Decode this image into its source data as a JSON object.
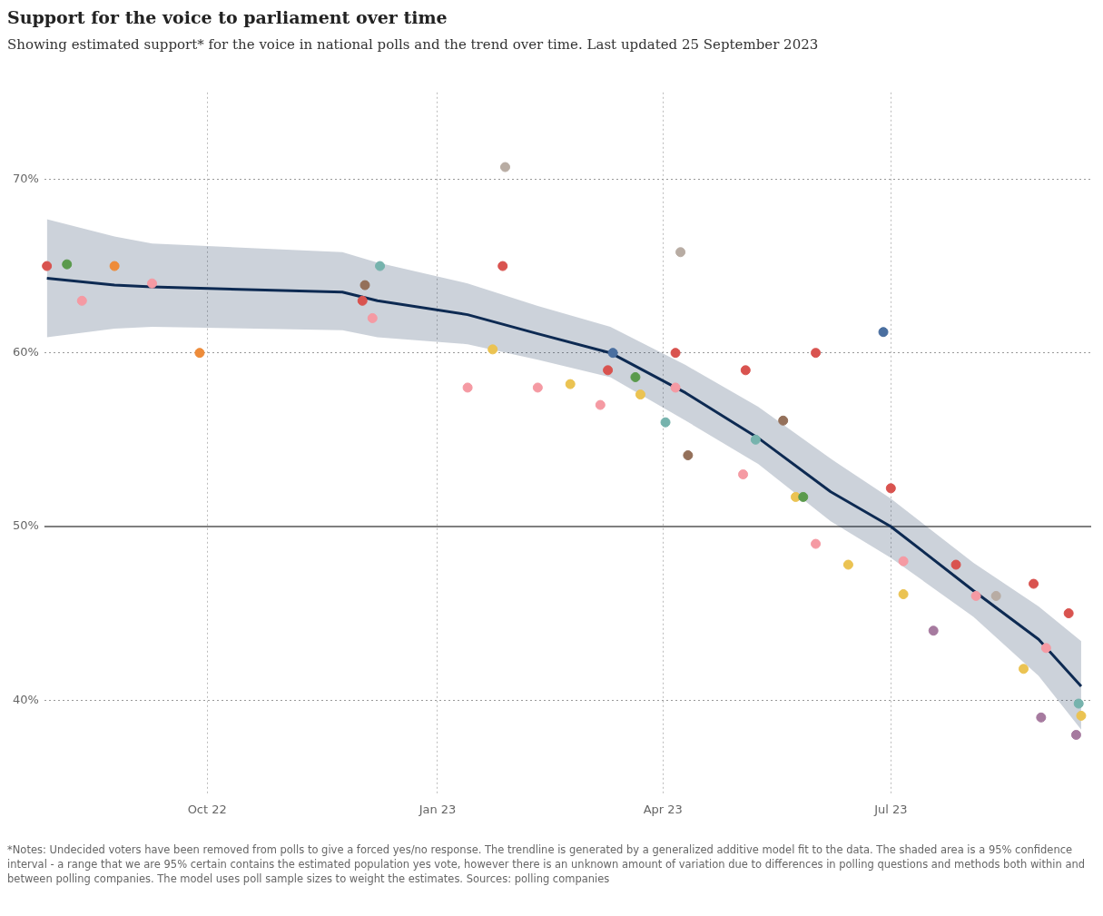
{
  "chart_data": {
    "type": "scatter",
    "title": "Support for the voice to parliament over time",
    "subtitle": "Showing estimated support* for the voice in national polls and the trend over time. Last updated 25 September 2023",
    "annotations": [
      "*Notes: Undecided voters have been removed from polls to give a forced yes/no response. The trendline is generated by a generalized additive model fit to the data. The shaded area is a 95% confidence interval - a range that we are 95% certain contains the estimated population yes vote, however there is an unknown amount of variation due to differences in polling questions and methods both within and between polling companies. The model uses poll sample sizes to weight the estimates. Sources: polling companies"
    ],
    "xlim": [
      "2022-07-28",
      "2023-09-19"
    ],
    "ylim": [
      34.5,
      75
    ],
    "xticks": [
      {
        "value": "2022-10-01",
        "label": "Oct 22"
      },
      {
        "value": "2023-01-01",
        "label": "Jan 23"
      },
      {
        "value": "2023-04-01",
        "label": "Apr 23"
      },
      {
        "value": "2023-07-01",
        "label": "Jul 23"
      }
    ],
    "yticks": [
      {
        "value": 40,
        "label": "40%"
      },
      {
        "value": 50,
        "label": "50%"
      },
      {
        "value": 60,
        "label": "60%"
      },
      {
        "value": 70,
        "label": "70%"
      }
    ],
    "grid": true,
    "legend": false,
    "marker": "circle",
    "ref_lines": [
      {
        "axis": "y",
        "value": 50,
        "color": "#7f7f7f"
      }
    ],
    "series": [
      {
        "color": "#4a6fa0",
        "x": [
          "2023-06-28"
        ],
        "values": [
          61.2
        ]
      },
      {
        "color": "#ee8c3a",
        "x": [
          "2022-08-25",
          "2022-09-28"
        ],
        "values": [
          65.0,
          60.0
        ]
      },
      {
        "color": "#d9534f",
        "x": [
          "2022-07-29",
          "2022-12-02",
          "2023-01-27",
          "2023-03-10",
          "2023-04-06",
          "2023-05-04",
          "2023-06-01",
          "2023-07-01",
          "2023-07-27",
          "2023-08-27",
          "2023-09-10"
        ],
        "values": [
          65.0,
          63.0,
          65.0,
          59.0,
          60.0,
          59.0,
          60.0,
          52.2,
          47.8,
          46.7,
          45.0
        ]
      },
      {
        "color": "#76b3ad",
        "x": [
          "2022-12-09",
          "2023-04-02",
          "2023-05-08",
          "2023-09-14"
        ],
        "values": [
          65.0,
          56.0,
          55.0,
          39.8
        ]
      },
      {
        "color": "#5a9a4c",
        "x": [
          "2022-08-06",
          "2023-03-21",
          "2023-05-27"
        ],
        "values": [
          65.1,
          58.6,
          51.7
        ]
      },
      {
        "color": "#ebc352",
        "x": [
          "2023-01-23",
          "2023-02-23",
          "2023-03-23",
          "2023-05-24",
          "2023-06-14",
          "2023-07-06",
          "2023-08-23",
          "2023-09-15"
        ],
        "values": [
          60.2,
          58.2,
          57.6,
          51.7,
          47.8,
          46.1,
          41.8,
          39.1
        ]
      },
      {
        "color": "#a67a9f",
        "x": [
          "2023-07-18",
          "2023-08-30",
          "2023-09-13"
        ],
        "values": [
          44.0,
          39.0,
          38.0
        ]
      },
      {
        "color": "#f59aa3",
        "x": [
          "2022-08-12",
          "2022-09-09",
          "2022-12-06",
          "2023-01-13",
          "2023-02-10",
          "2023-03-07",
          "2023-04-06",
          "2023-05-03",
          "2023-06-01",
          "2023-07-06",
          "2023-08-04",
          "2023-09-01"
        ],
        "values": [
          63.0,
          64.0,
          62.0,
          58.0,
          58.0,
          57.0,
          58.0,
          53.0,
          49.0,
          48.0,
          46.0,
          43.0
        ]
      },
      {
        "color": "#94705a",
        "x": [
          "2022-12-03",
          "2023-04-11",
          "2023-05-19"
        ],
        "values": [
          63.9,
          54.1,
          56.1
        ]
      },
      {
        "color": "#b8aca3",
        "x": [
          "2023-01-28",
          "2023-04-08",
          "2023-08-12"
        ],
        "values": [
          70.7,
          65.8,
          46.0
        ]
      },
      {
        "color": "#4a6fa0",
        "x": [
          "2023-03-12"
        ],
        "values": [
          60.0
        ]
      },
      {
        "type": "line",
        "color": "#0d2a52",
        "marker": "none",
        "x": [
          "2022-07-29",
          "2022-08-25",
          "2022-09-09",
          "2022-11-24",
          "2022-12-08",
          "2023-01-13",
          "2023-02-10",
          "2023-03-11",
          "2023-04-10",
          "2023-05-09",
          "2023-06-07",
          "2023-07-01",
          "2023-08-03",
          "2023-08-29",
          "2023-09-15"
        ],
        "values": [
          64.3,
          63.9,
          63.8,
          63.5,
          63.0,
          62.2,
          61.1,
          60.0,
          57.7,
          55.1,
          52.0,
          50.0,
          46.3,
          43.5,
          40.8
        ],
        "lower": [
          60.9,
          61.4,
          61.5,
          61.3,
          60.9,
          60.5,
          59.6,
          58.6,
          56.1,
          53.6,
          50.3,
          48.2,
          44.8,
          41.4,
          38.3
        ],
        "upper": [
          67.7,
          66.7,
          66.3,
          65.8,
          65.2,
          64.0,
          62.7,
          61.5,
          59.3,
          56.9,
          53.9,
          51.6,
          47.9,
          45.4,
          43.4
        ]
      }
    ]
  }
}
